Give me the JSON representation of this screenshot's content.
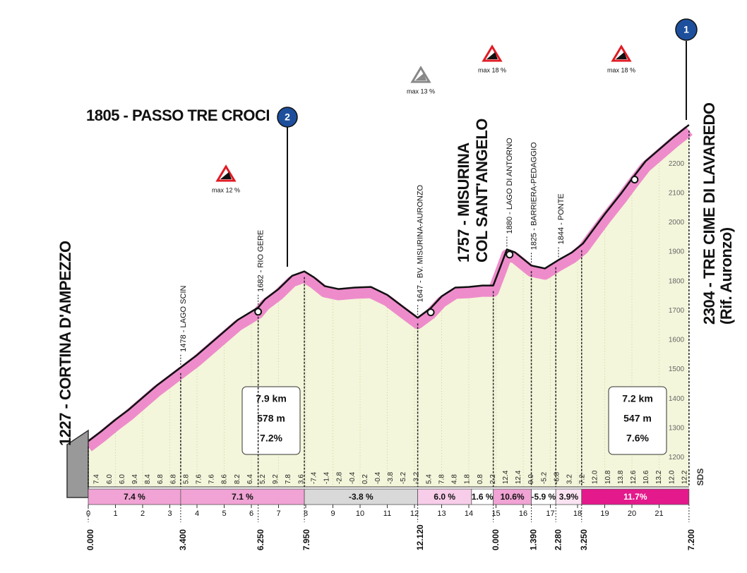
{
  "chart_data": {
    "type": "area",
    "x": [
      0,
      0.5,
      1,
      1.5,
      2,
      2.5,
      3,
      3.4,
      4,
      4.5,
      5,
      5.5,
      6.25,
      6.5,
      7,
      7.5,
      7.95,
      8.3,
      8.7,
      9.2,
      9.8,
      10.4,
      11,
      11.5,
      12.12,
      12.6,
      13,
      13.5,
      14,
      14.5,
      14.9,
      15.2,
      15.4,
      15.7,
      16.3,
      16.8,
      17.3,
      17.8,
      18.2,
      18.6,
      19,
      19.6,
      20,
      20.5,
      21,
      21.5,
      22.1
    ],
    "values": [
      1227,
      1262,
      1300,
      1335,
      1375,
      1415,
      1450,
      1478,
      1520,
      1560,
      1600,
      1640,
      1682,
      1710,
      1745,
      1790,
      1805,
      1785,
      1755,
      1745,
      1750,
      1752,
      1725,
      1690,
      1647,
      1680,
      1720,
      1750,
      1752,
      1757,
      1757,
      1830,
      1880,
      1870,
      1825,
      1815,
      1844,
      1870,
      1900,
      1950,
      2000,
      2070,
      2120,
      2180,
      2220,
      2260,
      2304
    ],
    "color": "#ee8ccb",
    "area_color": "#f3f6da",
    "ylim": [
      1100,
      2400
    ],
    "yticks": [
      1200,
      1300,
      1400,
      1500,
      1600,
      1700,
      1800,
      1900,
      2000,
      2100,
      2200
    ],
    "xticks": [
      0,
      1,
      2,
      3,
      4,
      5,
      6,
      7,
      8,
      9,
      10,
      11,
      12,
      13,
      14,
      15,
      16,
      17,
      18,
      19,
      20,
      21
    ],
    "gradients": [
      "7.4",
      "6.0",
      "6.0",
      "9.4",
      "8.4",
      "6.8",
      "6.8",
      "5.8",
      "7.6",
      "7.6",
      "8.6",
      "8.2",
      "6.4",
      "5.2",
      "9.2",
      "7.8",
      "3.6",
      "-7.4",
      "-1.4",
      "-2.8",
      "-0.4",
      "0.2",
      "-0.4",
      "-3.8",
      "-5.2",
      "-3.2",
      "5.4",
      "7.8",
      "4.8",
      "1.8",
      "0.8",
      "2.2",
      "12.4",
      "12.4",
      "9.0",
      "-5.2",
      "-6.8",
      "3.2",
      "7.2",
      "12.0",
      "10.8",
      "13.8",
      "12.6",
      "10.6",
      "13.2",
      "12.0",
      "12.2"
    ],
    "segments": [
      {
        "from": 0,
        "to": 3.4,
        "label": "7.4 %",
        "color": "#f0a3d4",
        "text_color": "#111"
      },
      {
        "from": 3.4,
        "to": 7.95,
        "label": "7.1 %",
        "color": "#f0a3d4",
        "text_color": "#111"
      },
      {
        "from": 7.95,
        "to": 12.12,
        "label": "-3.8 %",
        "color": "#d9d9d9",
        "text_color": "#111"
      },
      {
        "from": 12.12,
        "to": 14.1,
        "label": "6.0 %",
        "color": "#f7cde9",
        "text_color": "#111"
      },
      {
        "from": 14.1,
        "to": 14.9,
        "label": "1.6 %",
        "color": "#ffffff",
        "text_color": "#111"
      },
      {
        "from": 14.9,
        "to": 16.3,
        "label": "10.6%",
        "color": "#f0a3d4",
        "text_color": "#111"
      },
      {
        "from": 16.3,
        "to": 17.2,
        "label": "-5.9 %",
        "color": "#ffffff",
        "text_color": "#111"
      },
      {
        "from": 17.2,
        "to": 18.15,
        "label": "3.9%",
        "color": "#fbe3f2",
        "text_color": "#111"
      },
      {
        "from": 18.15,
        "to": 22.1,
        "label": "11.7%",
        "color": "#e4198b",
        "text_color": "#fff"
      }
    ],
    "markers": [
      {
        "value": 0,
        "label": "0.000"
      },
      {
        "value": 3.4,
        "label": "3.400"
      },
      {
        "value": 6.25,
        "label": "6.250"
      },
      {
        "value": 7.95,
        "label": "7.950"
      },
      {
        "value": 12.12,
        "label": "12.120"
      },
      {
        "value": 14.9,
        "label": "0.000"
      },
      {
        "value": 16.3,
        "label": "1.390"
      },
      {
        "value": 17.2,
        "label": "2.280"
      },
      {
        "value": 18.15,
        "label": "3.250"
      },
      {
        "value": 22.1,
        "label": "7.200"
      }
    ],
    "waypoints": [
      {
        "km": 3.4,
        "label": "1478 - LAGO SCIN"
      },
      {
        "km": 6.25,
        "label": "1682 - RIO GERE"
      },
      {
        "km": 12.12,
        "label": "1647 - BV. MISURINA-AURONZO"
      },
      {
        "km": 15.4,
        "label": "1880 - LAGO DI ANTORNO"
      },
      {
        "km": 16.3,
        "label": "1825 - BARRIERA-PEDAGGIO"
      },
      {
        "km": 17.3,
        "label": "1844 - PONTE"
      }
    ],
    "places": {
      "start": "1227 - CORTINA D'AMPEZZO",
      "pass": "1805 - PASSO TRE CROCI",
      "misurina": [
        "1757 - MISURINA",
        "COL SANT'ANGELO"
      ],
      "finish": [
        "2304 - TRE CIME DI LAVAREDO",
        "(Rif. Auronzo)"
      ]
    },
    "badges": [
      "2",
      "1"
    ],
    "max_gradients": [
      "max 12 %",
      "max 13 %",
      "max 18 %",
      "max 18 %"
    ],
    "climbs": [
      [
        "7.9 km",
        "578 m",
        "7.2%"
      ],
      [
        "7.2 km",
        "547 m",
        "7.6%"
      ]
    ],
    "logo": "SDS"
  }
}
